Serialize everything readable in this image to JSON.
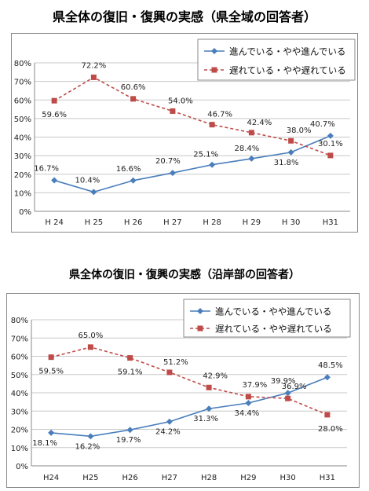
{
  "chart_data": [
    {
      "type": "line",
      "title": "県全体の復旧・復興の実感（県全域の回答者）",
      "categories": [
        "H 24",
        "H 25",
        "H 26",
        "H 27",
        "H 28",
        "H 29",
        "H 30",
        "H31"
      ],
      "ylim": [
        0,
        80
      ],
      "yticks": [
        "0%",
        "10%",
        "20%",
        "30%",
        "40%",
        "50%",
        "60%",
        "70%",
        "80%"
      ],
      "grid": true,
      "legend_position": "top-right",
      "series": [
        {
          "name": "進んでいる・やや進んでいる",
          "values": [
            16.7,
            10.4,
            16.6,
            20.7,
            25.1,
            28.4,
            31.8,
            40.7
          ],
          "labels": [
            "16.7%",
            "10.4%",
            "16.6%",
            "20.7%",
            "25.1%",
            "28.4%",
            "31.8%",
            "40.7%"
          ],
          "color": "#4a7ebb",
          "marker": "diamond",
          "dash": false
        },
        {
          "name": "遅れている・やや遅れている",
          "values": [
            59.6,
            72.2,
            60.6,
            54.0,
            46.7,
            42.4,
            38.0,
            30.1
          ],
          "labels": [
            "59.6%",
            "72.2%",
            "60.6%",
            "54.0%",
            "46.7%",
            "42.4%",
            "38.0%",
            "30.1%"
          ],
          "color": "#be4b48",
          "marker": "square",
          "dash": true
        }
      ]
    },
    {
      "type": "line",
      "title": "県全体の復旧・復興の実感（沿岸部の回答者）",
      "categories": [
        "H24",
        "H25",
        "H26",
        "H27",
        "H28",
        "H29",
        "H30",
        "H31"
      ],
      "ylim": [
        0,
        80
      ],
      "yticks": [
        "0%",
        "10%",
        "20%",
        "30%",
        "40%",
        "50%",
        "60%",
        "70%",
        "80%"
      ],
      "grid": true,
      "legend_position": "top-right",
      "series": [
        {
          "name": "進んでいる・やや進んでいる",
          "values": [
            18.1,
            16.2,
            19.7,
            24.2,
            31.3,
            34.4,
            39.9,
            48.5
          ],
          "labels": [
            "18.1%",
            "16.2%",
            "19.7%",
            "24.2%",
            "31.3%",
            "34.4%",
            "39.9%",
            "48.5%"
          ],
          "color": "#4a7ebb",
          "marker": "diamond",
          "dash": false
        },
        {
          "name": "遅れている・やや遅れている",
          "values": [
            59.5,
            65.0,
            59.1,
            51.2,
            42.9,
            37.9,
            36.9,
            28.0
          ],
          "labels": [
            "59.5%",
            "65.0%",
            "59.1%",
            "51.2%",
            "42.9%",
            "37.9%",
            "36.9%",
            "28.0%"
          ],
          "color": "#be4b48",
          "marker": "square",
          "dash": true
        }
      ]
    }
  ]
}
